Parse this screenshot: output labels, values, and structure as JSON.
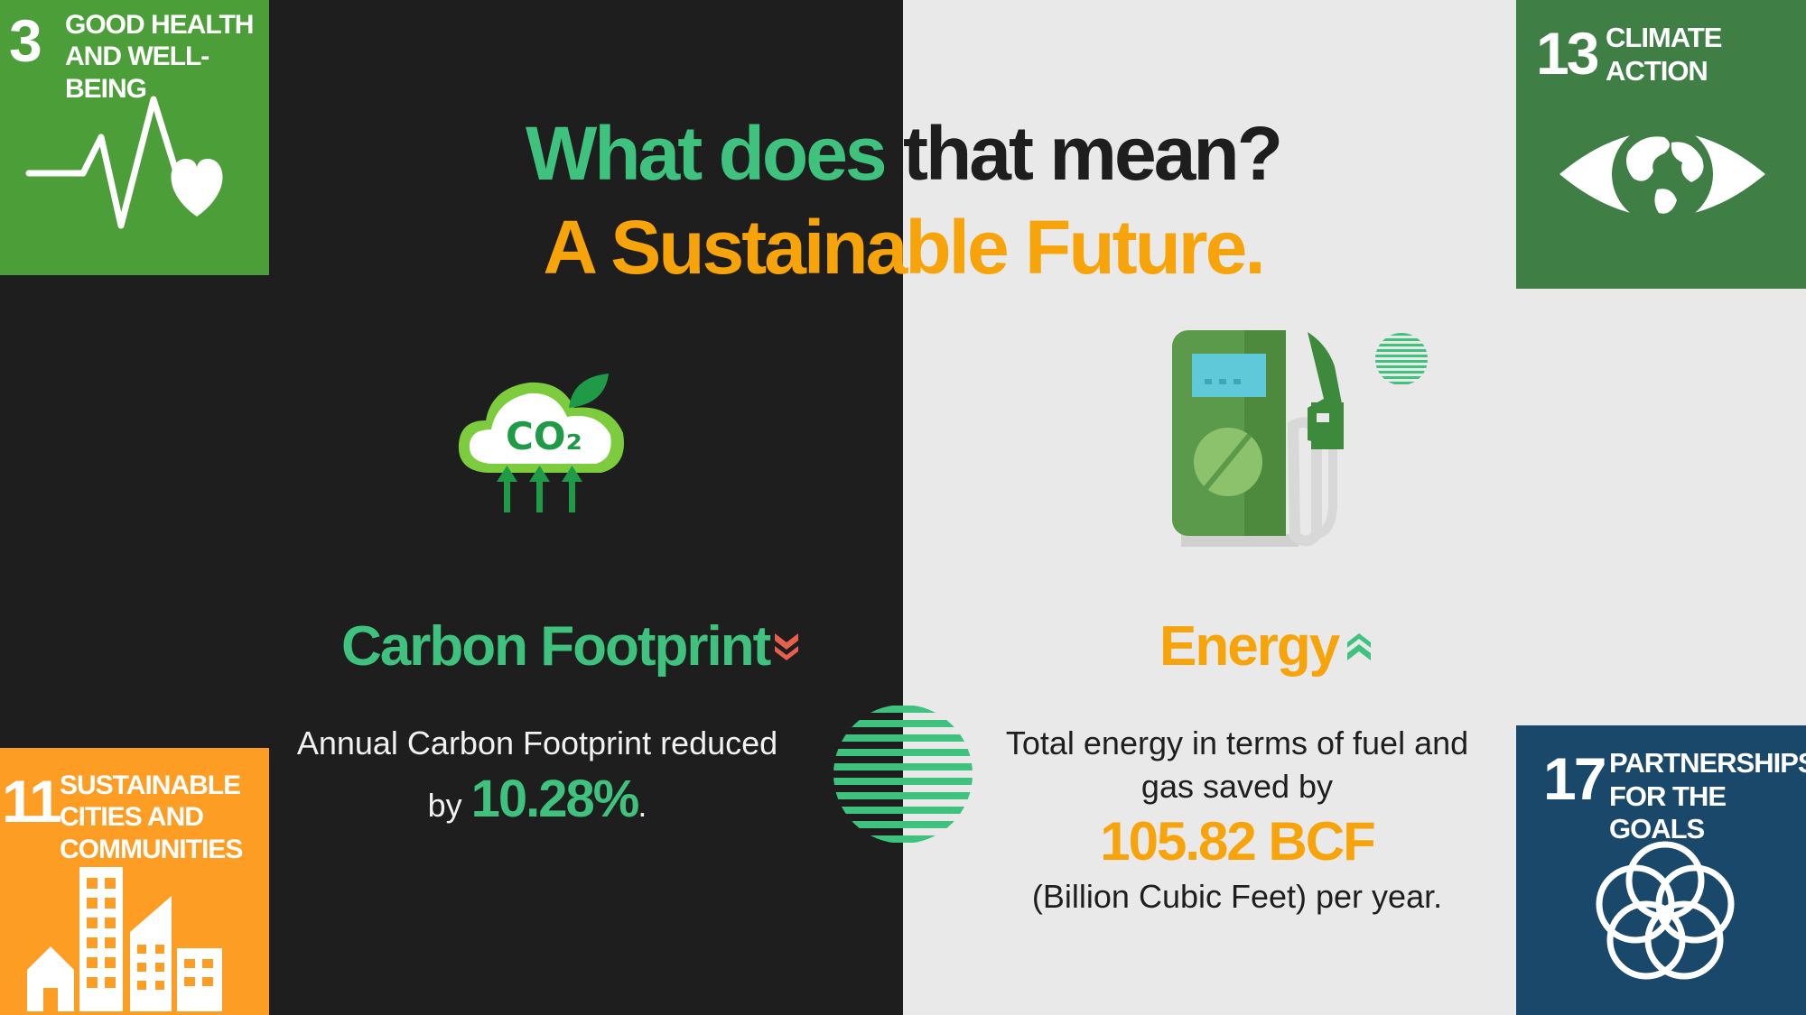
{
  "heading": {
    "line1_green": "What does",
    "line1_dark": " that mean?",
    "line2": "A Sustainable Future."
  },
  "sdg": {
    "goal3": {
      "number": "3",
      "label": "GOOD HEALTH AND WELL-BEING",
      "icon": "heartbeat-icon",
      "color": "#4c9f38"
    },
    "goal13": {
      "number": "13",
      "label": "CLIMATE ACTION",
      "icon": "eye-globe-icon",
      "color": "#3f7e44"
    },
    "goal11": {
      "number": "11",
      "label": "SUSTAINABLE CITIES AND COMMUNITIES",
      "icon": "city-buildings-icon",
      "color": "#fd9d24"
    },
    "goal17": {
      "number": "17",
      "label": "PARTNERSHIPS FOR THE GOALS",
      "icon": "interlocking-rings-icon",
      "color": "#19486a"
    }
  },
  "carbon": {
    "title": "Carbon Footprint",
    "trend": "down",
    "text_before": "Annual Carbon Footprint reduced by ",
    "value": "10.28%",
    "text_after": "."
  },
  "energy": {
    "title": "Energy",
    "trend": "up",
    "text_before": "Total energy in terms of fuel and gas saved by",
    "value": "105.82 BCF",
    "text_after": "(Billion Cubic Feet) per year."
  },
  "icons": {
    "co2": {
      "name": "co2-cloud-icon",
      "text": "CO₂"
    },
    "pump": {
      "name": "fuel-pump-icon"
    }
  },
  "colors": {
    "green": "#3ec27d",
    "orange": "#f7a30a",
    "dark": "#1e1e1e",
    "light": "#e9e9e9",
    "arrow_down": "#e8604c"
  }
}
